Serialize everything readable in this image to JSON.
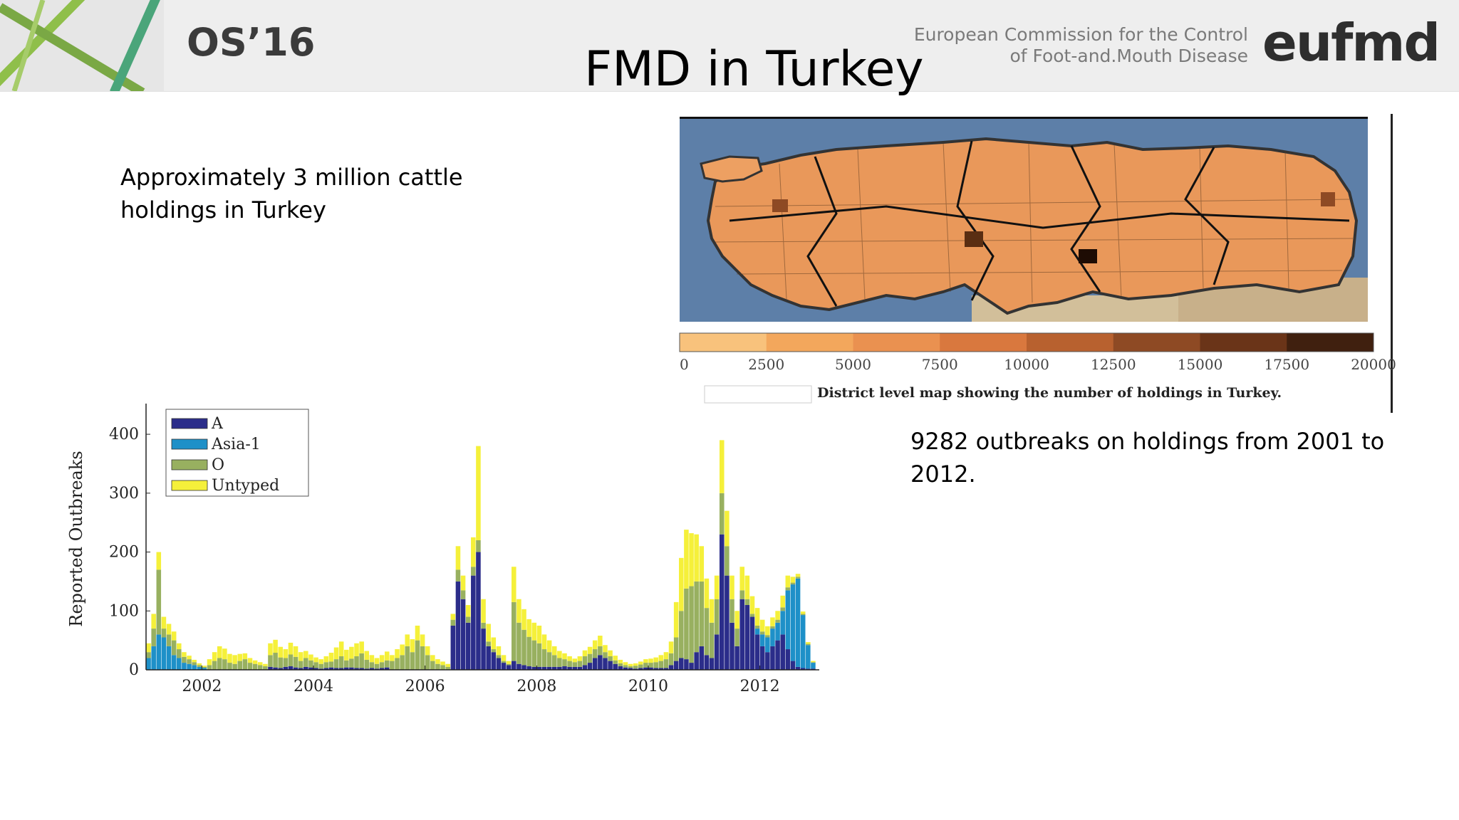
{
  "header": {
    "event_logo": "OS’16",
    "title": "FMD in Turkey",
    "org_line1": "European Commission for the Control",
    "org_line2": "of Foot-and.Mouth Disease",
    "org_logo_text": "eufmd"
  },
  "left_text": {
    "line1": "Approximately 3 million cattle",
    "line2": "holdings in Turkey"
  },
  "right_text": {
    "line1": "9282 outbreaks on holdings from 2001 to",
    "line2": "2012."
  },
  "map": {
    "colorbar_ticks": [
      "0",
      "2500",
      "5000",
      "7500",
      "10000",
      "12500",
      "15000",
      "17500",
      "20000"
    ],
    "colorbar_colors": [
      "#f8c27c",
      "#f3a75c",
      "#ea9150",
      "#d9783e",
      "#b8612f",
      "#8e4a24",
      "#6a3418",
      "#40200f"
    ],
    "caption": "District level map showing the number of holdings in Turkey.",
    "sea_color": "#5d7fa8",
    "land_color": "#e9985a"
  },
  "chart_data": {
    "type": "bar",
    "stacked": true,
    "ylabel": "Reported Outbreaks",
    "ylim": [
      0,
      440
    ],
    "yticks": [
      0,
      100,
      200,
      300,
      400
    ],
    "xlim": [
      2001.0,
      2013.0
    ],
    "xticks": [
      2002,
      2004,
      2006,
      2008,
      2010,
      2012
    ],
    "legend_position": "top-left",
    "series": [
      {
        "name": "A",
        "color": "#2b2d8a",
        "values": [
          0,
          0,
          0,
          0,
          0,
          0,
          0,
          0,
          0,
          0,
          0,
          0,
          0,
          0,
          0,
          0,
          0,
          0,
          0,
          0,
          0,
          0,
          0,
          0,
          5,
          4,
          3,
          5,
          6,
          4,
          3,
          5,
          4,
          3,
          2,
          3,
          4,
          3,
          3,
          4,
          4,
          3,
          3,
          2,
          3,
          2,
          3,
          4,
          0,
          0,
          0,
          0,
          0,
          0,
          0,
          0,
          0,
          0,
          0,
          0,
          75,
          150,
          120,
          80,
          160,
          200,
          70,
          40,
          30,
          20,
          12,
          8,
          15,
          10,
          8,
          6,
          5,
          5,
          5,
          5,
          5,
          5,
          6,
          5,
          5,
          5,
          8,
          12,
          20,
          25,
          20,
          15,
          10,
          6,
          4,
          3,
          2,
          3,
          4,
          4,
          3,
          3,
          3,
          8,
          15,
          20,
          18,
          12,
          30,
          40,
          25,
          20,
          60,
          230,
          160,
          80,
          40,
          120,
          110,
          90,
          60,
          40,
          30,
          40,
          50,
          60,
          35,
          15,
          5,
          3,
          2,
          2
        ]
      },
      {
        "name": "Asia-1",
        "color": "#1e90c8",
        "values": [
          20,
          40,
          60,
          55,
          40,
          25,
          20,
          12,
          10,
          8,
          5,
          3,
          0,
          0,
          0,
          0,
          0,
          0,
          0,
          0,
          0,
          0,
          0,
          0,
          0,
          0,
          0,
          0,
          0,
          0,
          0,
          0,
          0,
          0,
          0,
          0,
          0,
          0,
          0,
          0,
          0,
          0,
          0,
          0,
          0,
          0,
          0,
          0,
          0,
          0,
          0,
          0,
          0,
          0,
          0,
          0,
          0,
          0,
          0,
          0,
          0,
          0,
          0,
          0,
          0,
          0,
          0,
          0,
          0,
          0,
          0,
          0,
          0,
          0,
          0,
          0,
          0,
          0,
          0,
          0,
          0,
          0,
          0,
          0,
          0,
          0,
          0,
          0,
          0,
          0,
          0,
          0,
          0,
          0,
          0,
          0,
          0,
          0,
          0,
          0,
          0,
          0,
          0,
          0,
          0,
          0,
          0,
          0,
          0,
          0,
          0,
          0,
          0,
          0,
          0,
          0,
          0,
          0,
          0,
          0,
          10,
          20,
          25,
          30,
          30,
          40,
          100,
          130,
          150,
          90,
          40,
          10
        ]
      },
      {
        "name": "O",
        "color": "#98b060",
        "values": [
          10,
          30,
          110,
          15,
          20,
          25,
          15,
          10,
          8,
          5,
          3,
          2,
          8,
          15,
          20,
          18,
          12,
          10,
          15,
          18,
          12,
          10,
          8,
          6,
          20,
          25,
          18,
          15,
          20,
          18,
          12,
          15,
          12,
          10,
          8,
          10,
          10,
          15,
          20,
          12,
          15,
          20,
          25,
          15,
          10,
          8,
          10,
          12,
          15,
          20,
          25,
          40,
          30,
          50,
          40,
          25,
          15,
          10,
          8,
          5,
          10,
          20,
          15,
          10,
          15,
          20,
          10,
          8,
          5,
          5,
          3,
          2,
          100,
          70,
          60,
          50,
          45,
          40,
          30,
          25,
          20,
          15,
          12,
          10,
          8,
          10,
          15,
          15,
          15,
          15,
          10,
          8,
          6,
          5,
          4,
          3,
          5,
          6,
          8,
          8,
          10,
          12,
          15,
          20,
          40,
          80,
          120,
          130,
          120,
          110,
          80,
          60,
          60,
          70,
          50,
          40,
          30,
          15,
          10,
          5,
          5,
          5,
          4,
          4,
          5,
          6,
          5,
          3,
          3,
          2,
          2,
          1
        ]
      },
      {
        "name": "Untyped",
        "color": "#f5f03a",
        "values": [
          15,
          25,
          30,
          20,
          18,
          15,
          10,
          8,
          6,
          4,
          3,
          2,
          10,
          15,
          20,
          18,
          15,
          15,
          12,
          10,
          8,
          6,
          5,
          4,
          20,
          22,
          18,
          15,
          20,
          18,
          15,
          12,
          10,
          8,
          8,
          10,
          15,
          20,
          25,
          18,
          20,
          22,
          20,
          15,
          12,
          10,
          12,
          15,
          10,
          15,
          18,
          20,
          22,
          25,
          20,
          15,
          10,
          8,
          6,
          5,
          10,
          40,
          25,
          20,
          50,
          160,
          40,
          30,
          20,
          15,
          10,
          5,
          60,
          40,
          35,
          30,
          30,
          30,
          25,
          20,
          15,
          12,
          10,
          8,
          6,
          8,
          10,
          12,
          15,
          18,
          12,
          10,
          8,
          6,
          5,
          4,
          4,
          5,
          6,
          7,
          8,
          10,
          12,
          20,
          60,
          90,
          100,
          90,
          80,
          60,
          50,
          40,
          40,
          90,
          60,
          40,
          30,
          40,
          40,
          30,
          30,
          20,
          15,
          15,
          15,
          20,
          20,
          10,
          5,
          4,
          3,
          2
        ]
      }
    ]
  }
}
